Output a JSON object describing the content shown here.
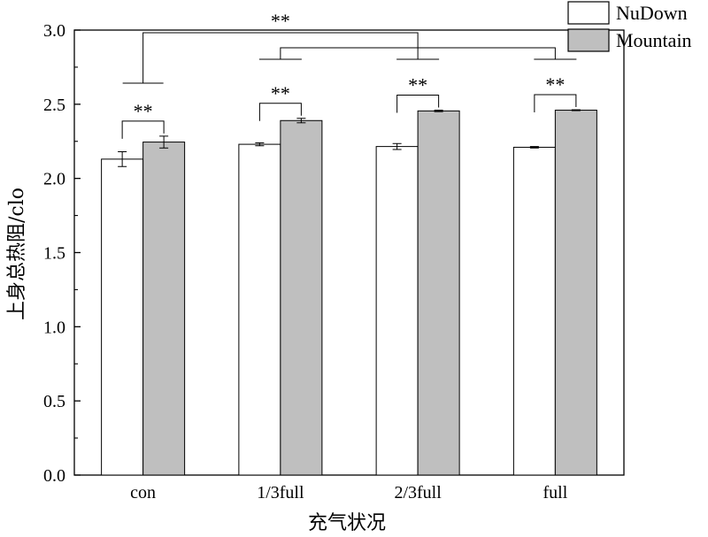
{
  "chart_data": {
    "type": "bar",
    "xlabel": "充气状况",
    "ylabel": "上身总热阻/clo",
    "ylim": [
      0,
      3.0
    ],
    "yticks": [
      "0.0",
      "0.5",
      "1.0",
      "1.5",
      "2.0",
      "2.5",
      "3.0"
    ],
    "categories": [
      "con",
      "1/3full",
      "2/3full",
      "full"
    ],
    "series": [
      {
        "name": "NuDown",
        "color": "#ffffff",
        "values": [
          2.13,
          2.23,
          2.215,
          2.21
        ],
        "errors": [
          0.05,
          0.01,
          0.02,
          0.005
        ]
      },
      {
        "name": "Mountain",
        "color": "#bfbfbf",
        "values": [
          2.245,
          2.39,
          2.455,
          2.46
        ],
        "errors": [
          0.04,
          0.015,
          0.005,
          0.003
        ]
      }
    ],
    "legend_position": "top-right",
    "grid": false,
    "significance": {
      "pair_label": "**",
      "group_label": "**"
    }
  }
}
